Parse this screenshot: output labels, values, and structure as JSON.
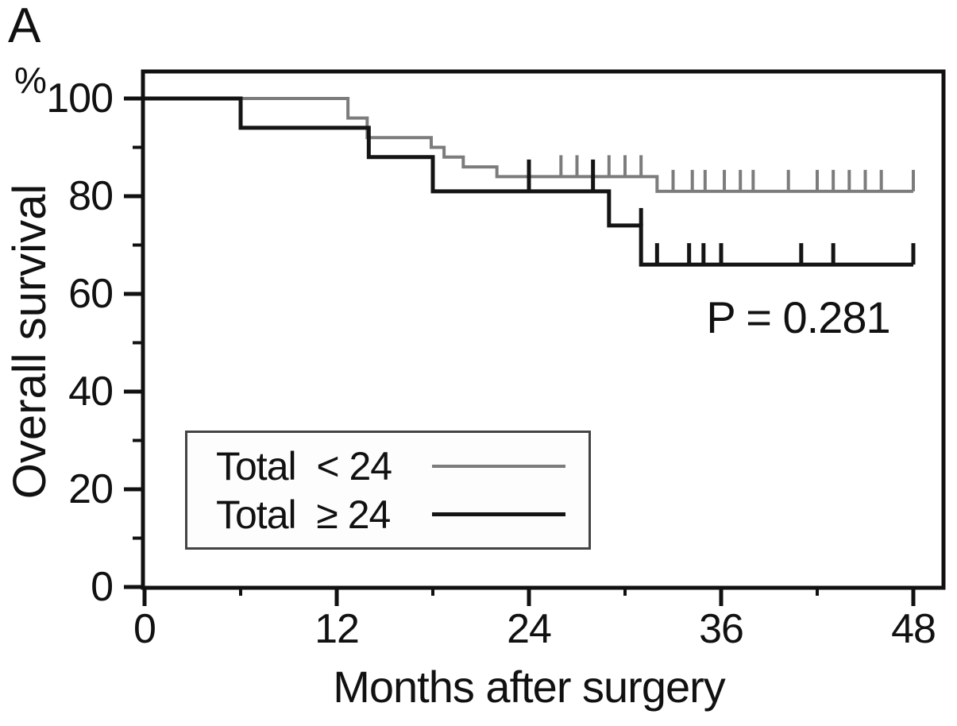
{
  "panel_label": "A",
  "chart_data": {
    "type": "line",
    "variant": "kaplan-meier-step",
    "title": "",
    "xlabel": "Months after surgery",
    "ylabel": "Overall survival",
    "y_unit": "%",
    "p_value_label": "P = 0.281",
    "xlim": [
      0,
      50
    ],
    "ylim": [
      0,
      105.5
    ],
    "grid": false,
    "legend_position": "lower-left",
    "x_ticks": [
      0,
      12,
      24,
      36,
      48
    ],
    "x_minor_ticks": [
      6,
      18,
      30,
      42
    ],
    "y_ticks": [
      100,
      80,
      60,
      40,
      20,
      0
    ],
    "y_minor_ticks": [
      90,
      70,
      50,
      30,
      10
    ],
    "series": [
      {
        "name": "Total < 24",
        "color": "#7c7c7c",
        "line_width": 4,
        "steps": [
          [
            0,
            100
          ],
          [
            12.7,
            96
          ],
          [
            13.9,
            92
          ],
          [
            17.9,
            90
          ],
          [
            18.7,
            88
          ],
          [
            19.9,
            86
          ],
          [
            22,
            84
          ],
          [
            32,
            81
          ]
        ],
        "end_month": 48,
        "censor_marks": [
          [
            26,
            84
          ],
          [
            27,
            84
          ],
          [
            29,
            84
          ],
          [
            30,
            84
          ],
          [
            31,
            84
          ],
          [
            33,
            81
          ],
          [
            34.2,
            81
          ],
          [
            35,
            81
          ],
          [
            36.2,
            81
          ],
          [
            37.2,
            81
          ],
          [
            38,
            81
          ],
          [
            40.2,
            81
          ],
          [
            42,
            81
          ],
          [
            43,
            81
          ],
          [
            44,
            81
          ],
          [
            45,
            81
          ],
          [
            46,
            81
          ],
          [
            48,
            81
          ]
        ]
      },
      {
        "name": "Total ≥ 24",
        "color": "#141414",
        "line_width": 5,
        "steps": [
          [
            0,
            100
          ],
          [
            6,
            94
          ],
          [
            14,
            88
          ],
          [
            18,
            81
          ],
          [
            29,
            74
          ],
          [
            31,
            66
          ]
        ],
        "end_month": 48,
        "censor_marks": [
          [
            24,
            81,
            40
          ],
          [
            28,
            81,
            40
          ],
          [
            31,
            74,
            22
          ],
          [
            32,
            66
          ],
          [
            34,
            66
          ],
          [
            34.9,
            66
          ],
          [
            36,
            66
          ],
          [
            41,
            66
          ],
          [
            43,
            66
          ],
          [
            48,
            66
          ]
        ]
      }
    ]
  },
  "legend": {
    "items": [
      {
        "label": "Total  < 24",
        "color": "#7c7c7c",
        "line_width": 4
      },
      {
        "label": "Total  ≥ 24",
        "color": "#141414",
        "line_width": 5
      }
    ]
  }
}
